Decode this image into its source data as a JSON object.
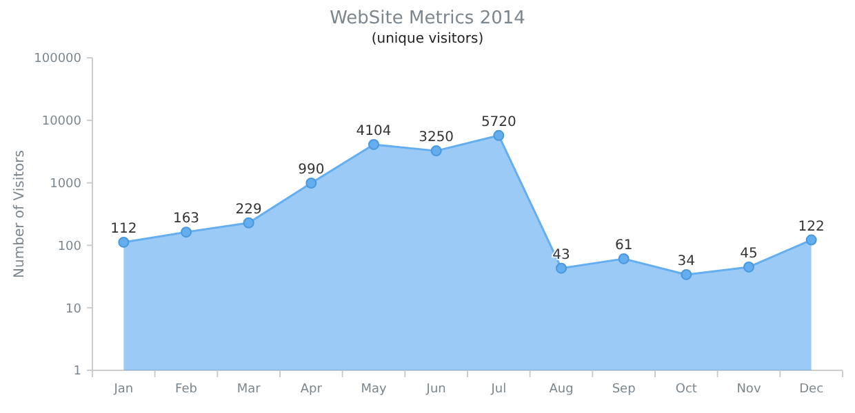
{
  "chart_data": {
    "type": "area",
    "title": "WebSite Metrics 2014",
    "subtitle": "(unique visitors)",
    "ylabel": "Number of Visitors",
    "categories": [
      "Jan",
      "Feb",
      "Mar",
      "Apr",
      "May",
      "Jun",
      "Jul",
      "Aug",
      "Sep",
      "Oct",
      "Nov",
      "Dec"
    ],
    "series": [
      {
        "color": "#64aef0",
        "values": [
          112,
          163,
          229,
          990,
          4104,
          3250,
          5720,
          43,
          61,
          34,
          45,
          122
        ]
      }
    ],
    "log": true,
    "ylim": [
      1,
      100000
    ],
    "yticks": [
      1,
      10,
      100,
      1000,
      10000,
      100000
    ],
    "marker": "circle",
    "data_labels": true,
    "grid": false
  }
}
